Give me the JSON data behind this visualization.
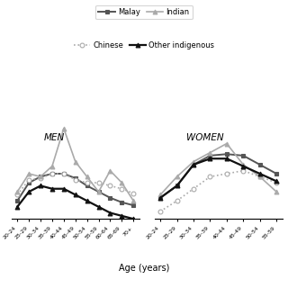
{
  "age_labels_men": [
    "20-24",
    "25-29",
    "30-34",
    "35-39",
    "40-44",
    "45-49",
    "50-54",
    "55-59",
    "60-64",
    "65-69",
    "70+"
  ],
  "age_labels_women": [
    "20-24",
    "25-29",
    "30-34",
    "35-39",
    "40-44",
    "45-49",
    "50-54",
    "55-59"
  ],
  "men": {
    "Malay": [
      12,
      24,
      28,
      30,
      30,
      27,
      22,
      18,
      14,
      11,
      9
    ],
    "Chinese": [
      16,
      26,
      27,
      30,
      30,
      26,
      24,
      24,
      22,
      20,
      17
    ],
    "Indian": [
      18,
      30,
      28,
      35,
      60,
      38,
      28,
      18,
      32,
      24,
      12
    ],
    "Other indigenous": [
      8,
      18,
      22,
      20,
      20,
      16,
      12,
      8,
      4,
      2,
      0
    ]
  },
  "women": {
    "Malay": [
      14,
      22,
      36,
      42,
      43,
      42,
      36,
      30
    ],
    "Chinese": [
      5,
      12,
      20,
      28,
      30,
      32,
      28,
      24
    ],
    "Indian": [
      16,
      28,
      38,
      44,
      50,
      36,
      28,
      18
    ],
    "Other indigenous": [
      14,
      22,
      36,
      40,
      40,
      35,
      30,
      25
    ]
  },
  "line_styles": {
    "Malay": {
      "color": "#555555",
      "linestyle": "-",
      "marker": "s",
      "markersize": 3.5,
      "linewidth": 1.4,
      "markerfacecolor": "#555555"
    },
    "Chinese": {
      "color": "#aaaaaa",
      "linestyle": ":",
      "marker": "o",
      "markersize": 3.5,
      "linewidth": 1.2,
      "markerfacecolor": "white"
    },
    "Indian": {
      "color": "#aaaaaa",
      "linestyle": "-",
      "marker": "^",
      "markersize": 3.5,
      "linewidth": 1.2,
      "markerfacecolor": "#aaaaaa"
    },
    "Other indigenous": {
      "color": "#111111",
      "linestyle": "-",
      "marker": "^",
      "markersize": 3.5,
      "linewidth": 1.6,
      "markerfacecolor": "#111111"
    }
  },
  "xlabel": "Age (years)",
  "men_label": "MEN",
  "women_label": "WOMEN",
  "ylim": [
    0,
    65
  ],
  "legend_row1": [
    "Malay",
    "Indian"
  ],
  "legend_row2": [
    "Chinese",
    "Other indigenous"
  ]
}
